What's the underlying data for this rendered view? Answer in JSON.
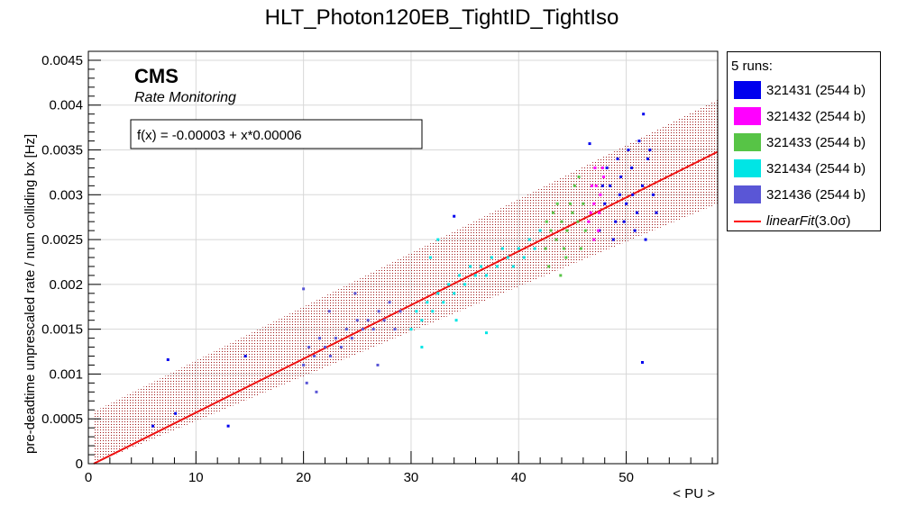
{
  "colors": {
    "fit_line": "#ee1111",
    "band_dots": "#a01818",
    "axis": "#000000",
    "grid": "#d8d8d8"
  },
  "chart_data": {
    "type": "scatter",
    "title": "HLT_Photon120EB_TightID_TightIso",
    "xlabel": "< PU >",
    "ylabel": "pre-deadtime unprescaled rate / num colliding bx [Hz]",
    "xlim": [
      0,
      58.5
    ],
    "ylim": [
      0,
      0.0046
    ],
    "xticks": [
      0,
      10,
      20,
      30,
      40,
      50
    ],
    "xtick_labels": [
      "0",
      "10",
      "20",
      "30",
      "40",
      "50"
    ],
    "yticks": [
      0,
      0.0005,
      0.001,
      0.0015,
      0.002,
      0.0025,
      0.003,
      0.0035,
      0.004,
      0.0045
    ],
    "ytick_labels": [
      "0",
      "0.0005",
      "0.001",
      "0.0015",
      "0.002",
      "0.0025",
      "0.003",
      "0.0035",
      "0.004",
      "0.0045"
    ],
    "grid": true,
    "legend_position": "right",
    "legend_title": "5 runs:",
    "annotations": {
      "cms_label": "CMS",
      "subtitle": "Rate Monitoring",
      "fit_formula": "f(x) = -0.00003 + x*0.00006"
    },
    "fit": {
      "label": "linearFit(3.0σ)",
      "label_main": "linearFit",
      "label_tail": "(3.0σ)",
      "intercept": -3e-05,
      "slope": 6e-05,
      "band_halfwidth": 0.00058,
      "x_range": [
        0.5,
        58.5
      ]
    },
    "series": [
      {
        "name": "321431 (2544 b)",
        "color": "#0000ee",
        "points": [
          [
            6,
            0.00042
          ],
          [
            7.4,
            0.00116
          ],
          [
            8.1,
            0.00056
          ],
          [
            13,
            0.00042
          ],
          [
            14.6,
            0.0012
          ],
          [
            34,
            0.00276
          ],
          [
            46.6,
            0.00357
          ],
          [
            51.5,
            0.00113
          ],
          [
            48,
            0.0029
          ],
          [
            48.5,
            0.0031
          ],
          [
            49,
            0.0027
          ],
          [
            49.5,
            0.0032
          ],
          [
            50,
            0.0029
          ],
          [
            50.5,
            0.0033
          ],
          [
            51,
            0.0028
          ],
          [
            51.5,
            0.0031
          ],
          [
            52,
            0.0034
          ],
          [
            52.5,
            0.003
          ],
          [
            48.2,
            0.0033
          ],
          [
            49.2,
            0.0034
          ],
          [
            50.2,
            0.0035
          ],
          [
            51.2,
            0.0036
          ],
          [
            52.2,
            0.0035
          ],
          [
            47.5,
            0.0026
          ],
          [
            48.8,
            0.0025
          ],
          [
            49.8,
            0.0027
          ],
          [
            50.8,
            0.0026
          ],
          [
            51.8,
            0.0025
          ],
          [
            52.8,
            0.0028
          ],
          [
            51.6,
            0.0039
          ],
          [
            47.8,
            0.0031
          ],
          [
            49.4,
            0.003
          ],
          [
            50.6,
            0.003
          ]
        ]
      },
      {
        "name": "321432 (2544 b)",
        "color": "#ff00ff",
        "points": [
          [
            46.5,
            0.0027
          ],
          [
            47,
            0.0029
          ],
          [
            47.2,
            0.0031
          ],
          [
            47.5,
            0.0028
          ],
          [
            47.8,
            0.0033
          ],
          [
            47,
            0.0025
          ],
          [
            46.8,
            0.0031
          ],
          [
            47.4,
            0.0026
          ],
          [
            47.6,
            0.003
          ],
          [
            47.1,
            0.0033
          ],
          [
            46.7,
            0.0028
          ],
          [
            47.9,
            0.0032
          ]
        ]
      },
      {
        "name": "321433 (2544 b)",
        "color": "#57c446",
        "points": [
          [
            42.5,
            0.0024
          ],
          [
            43,
            0.0026
          ],
          [
            43.5,
            0.0025
          ],
          [
            44,
            0.0027
          ],
          [
            44.5,
            0.0026
          ],
          [
            45,
            0.0028
          ],
          [
            45.5,
            0.0027
          ],
          [
            46,
            0.0029
          ],
          [
            42.8,
            0.0022
          ],
          [
            43.6,
            0.0029
          ],
          [
            44.4,
            0.0023
          ],
          [
            45.2,
            0.0031
          ],
          [
            45.8,
            0.0024
          ],
          [
            43.2,
            0.0028
          ],
          [
            44.8,
            0.0029
          ],
          [
            46.2,
            0.0026
          ],
          [
            42.6,
            0.0027
          ],
          [
            45.6,
            0.0032
          ],
          [
            44.2,
            0.0024
          ],
          [
            43.9,
            0.0021
          ]
        ]
      },
      {
        "name": "321434 (2544 b)",
        "color": "#00e5e5",
        "points": [
          [
            30,
            0.0015
          ],
          [
            30.5,
            0.0017
          ],
          [
            31,
            0.0016
          ],
          [
            31.5,
            0.0018
          ],
          [
            32,
            0.0017
          ],
          [
            32.5,
            0.0019
          ],
          [
            33,
            0.0018
          ],
          [
            33.5,
            0.002
          ],
          [
            34,
            0.0019
          ],
          [
            34.5,
            0.0021
          ],
          [
            35,
            0.002
          ],
          [
            35.5,
            0.0022
          ],
          [
            36,
            0.0021
          ],
          [
            36.5,
            0.0022
          ],
          [
            37,
            0.0021
          ],
          [
            37.5,
            0.0023
          ],
          [
            38,
            0.0022
          ],
          [
            38.5,
            0.0024
          ],
          [
            39,
            0.0023
          ],
          [
            39.5,
            0.0022
          ],
          [
            40,
            0.0024
          ],
          [
            40.5,
            0.0023
          ],
          [
            41,
            0.0025
          ],
          [
            41.5,
            0.0024
          ],
          [
            42,
            0.0026
          ],
          [
            31,
            0.0013
          ],
          [
            32.5,
            0.0025
          ],
          [
            37,
            0.00146
          ],
          [
            31.8,
            0.0023
          ],
          [
            34.2,
            0.0016
          ]
        ]
      },
      {
        "name": "321436 (2544 b)",
        "color": "#5a56d6",
        "points": [
          [
            20,
            0.00195
          ],
          [
            20,
            0.0011
          ],
          [
            20.5,
            0.0013
          ],
          [
            21,
            0.0012
          ],
          [
            21.5,
            0.0014
          ],
          [
            22,
            0.0013
          ],
          [
            22.5,
            0.0012
          ],
          [
            23,
            0.0014
          ],
          [
            23.5,
            0.0013
          ],
          [
            24,
            0.0015
          ],
          [
            24.5,
            0.0014
          ],
          [
            25,
            0.0016
          ],
          [
            25.5,
            0.0015
          ],
          [
            26,
            0.0016
          ],
          [
            26.5,
            0.0015
          ],
          [
            27,
            0.0017
          ],
          [
            27.5,
            0.0016
          ],
          [
            28,
            0.0018
          ],
          [
            28.5,
            0.0015
          ],
          [
            29,
            0.0017
          ],
          [
            20.3,
            0.0009
          ],
          [
            21.2,
            0.0008
          ],
          [
            22.4,
            0.0017
          ],
          [
            24.8,
            0.0019
          ],
          [
            26.9,
            0.0011
          ]
        ]
      }
    ]
  }
}
